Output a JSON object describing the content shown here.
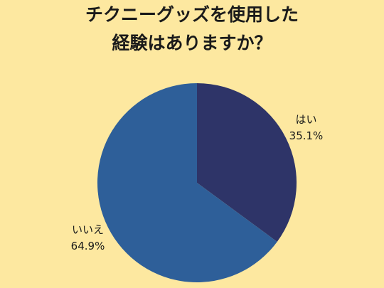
{
  "chart_data": {
    "type": "pie",
    "title": [
      "チクニーグッズを使用した",
      "経験はありますか？"
    ],
    "categories": [
      "はい",
      "いいえ"
    ],
    "values": [
      35.1,
      64.9
    ],
    "value_labels": [
      "35.1%",
      "64.9%"
    ],
    "colors": [
      "#2e3468",
      "#2e5f99"
    ]
  }
}
